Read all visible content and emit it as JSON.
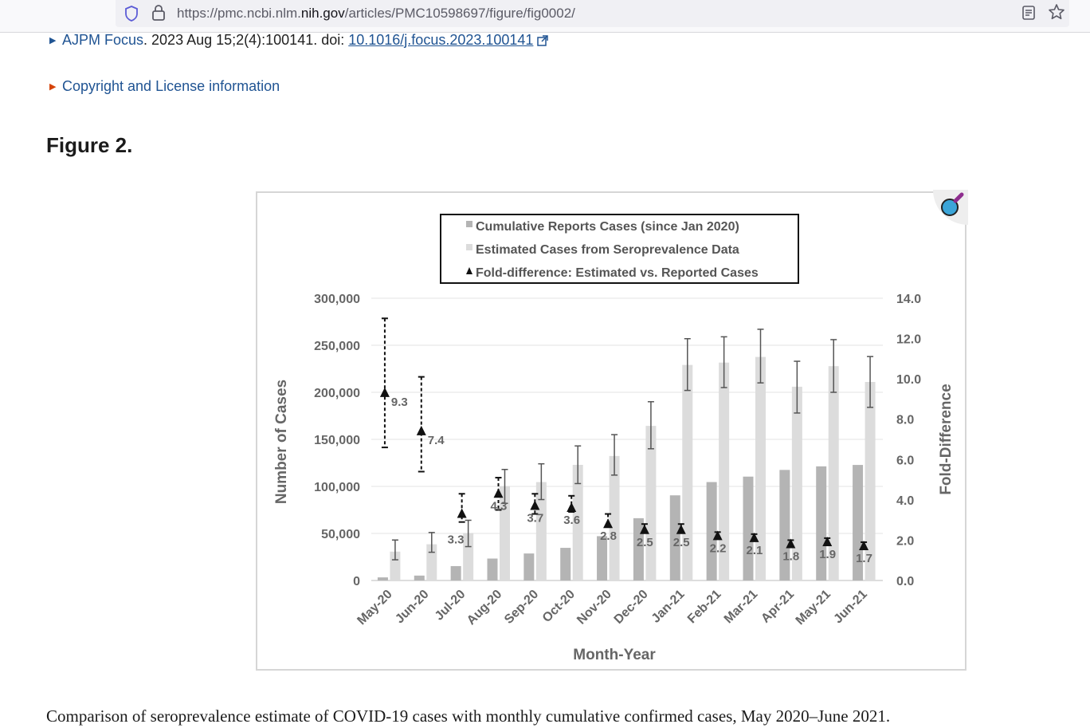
{
  "browser": {
    "url_prefix": "https://pmc.ncbi.nlm.",
    "url_host": "nih.gov",
    "url_path": "/articles/PMC10598697/figure/fig0002/",
    "icons": [
      "shield-icon",
      "lock-icon",
      "reader-view-icon",
      "bookmark-star-icon"
    ]
  },
  "citation": {
    "journal": "AJPM Focus",
    "details": ". 2023 Aug 15;2(4):100141. doi: ",
    "doi": "10.1016/j.focus.2023.100141"
  },
  "copyright_label": "Copyright and License information",
  "figure_label": "Figure 2.",
  "caption": "Comparison of seroprevalence estimate of COVID-19 cases with monthly cumulative confirmed cases, May 2020–June 2021.",
  "chart_data": {
    "type": "bar",
    "xlabel": "Month-Year",
    "ylabel": "Number of Cases",
    "y2label": "Fold-Difference",
    "ylim": [
      0,
      300000
    ],
    "y2lim": [
      0,
      14
    ],
    "yticks": [
      "300,000",
      "250,000",
      "200,000",
      "150,000",
      "100,000",
      "50,000",
      "0"
    ],
    "y2ticks": [
      "14.0",
      "12.0",
      "10.0",
      "8.0",
      "6.0",
      "4.0",
      "2.0",
      "0.0"
    ],
    "grid": true,
    "legend_position": "top-center",
    "categories": [
      "May-20",
      "Jun-20",
      "Jul-20",
      "Aug-20",
      "Sep-20",
      "Oct-20",
      "Nov-20",
      "Dec-20",
      "Jan-21",
      "Feb-21",
      "Mar-21",
      "Apr-21",
      "May-21",
      "Jun-21"
    ],
    "series": [
      {
        "name": "Cumulative Reports Cases (since Jan 2020)",
        "kind": "bar",
        "axis": "left",
        "color": "#b4b4b4",
        "values": [
          3300,
          5200,
          15300,
          23300,
          28700,
          34700,
          47100,
          66200,
          90500,
          104600,
          110400,
          117500,
          121300,
          122800
        ]
      },
      {
        "name": "Estimated Cases from Seroprevalence Data",
        "kind": "bar",
        "axis": "left",
        "color": "#dcdcdc",
        "values": [
          30700,
          38500,
          50500,
          100200,
          104600,
          122900,
          132300,
          164300,
          229100,
          231600,
          237600,
          205900,
          227800,
          211000
        ],
        "error_low": [
          22000,
          30000,
          36000,
          82000,
          86000,
          103000,
          112000,
          140000,
          202000,
          205000,
          210000,
          178000,
          200000,
          184000
        ],
        "error_high": [
          43000,
          51000,
          64000,
          118000,
          124000,
          143000,
          155000,
          190000,
          257000,
          259000,
          267000,
          233000,
          256000,
          238000
        ]
      },
      {
        "name": "Fold-difference: Estimated vs. Reported Cases",
        "kind": "marker",
        "axis": "right",
        "color": "#111111",
        "values": [
          9.3,
          7.4,
          3.3,
          4.3,
          3.7,
          3.6,
          2.8,
          2.5,
          2.5,
          2.2,
          2.1,
          1.8,
          1.9,
          1.7
        ],
        "labels": [
          "9.3",
          "7.4",
          "3.3",
          "4.3",
          "3.7",
          "3.6",
          "2.8",
          "2.5",
          "2.5",
          "2.2",
          "2.1",
          "1.8",
          "1.9",
          "1.7"
        ],
        "error_low": [
          6.6,
          5.4,
          2.9,
          3.5,
          3.3,
          3.4,
          2.7,
          2.4,
          2.4,
          2.1,
          2.0,
          1.7,
          1.8,
          1.6
        ],
        "error_high": [
          13.0,
          10.1,
          4.3,
          5.1,
          4.3,
          4.2,
          3.3,
          2.8,
          2.8,
          2.4,
          2.3,
          2.0,
          2.1,
          1.9
        ]
      }
    ]
  }
}
